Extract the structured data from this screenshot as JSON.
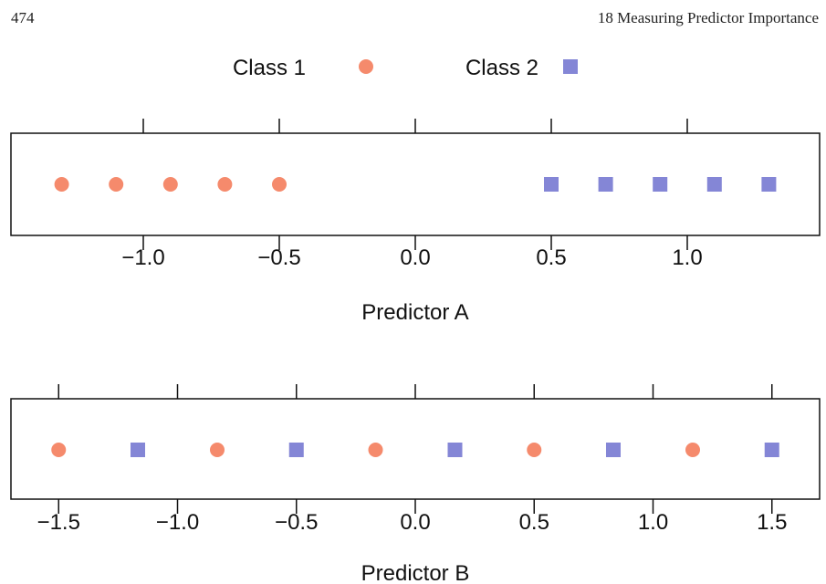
{
  "page": {
    "number": "474",
    "running_head": "18 Measuring Predictor Importance"
  },
  "colors": {
    "class1": "#f58a6c",
    "class2": "#8486d6"
  },
  "chart_data": {
    "legend": {
      "placement": "top-center",
      "entries": [
        {
          "label": "Class 1",
          "marker": "circle"
        },
        {
          "label": "Class 2",
          "marker": "square"
        }
      ]
    },
    "panels": [
      {
        "type": "scatter",
        "xlabel": "Predictor A",
        "xlim": [
          -1.49,
          1.48
        ],
        "ticks": [
          -1.0,
          -0.5,
          0.0,
          0.5,
          1.0
        ],
        "tick_labels": [
          "−1.0",
          "−0.5",
          "0.0",
          "0.5",
          "1.0"
        ],
        "series": [
          {
            "name": "Class 1",
            "x": [
              -1.3,
              -1.1,
              -0.9,
              -0.7,
              -0.5
            ]
          },
          {
            "name": "Class 2",
            "x": [
              0.5,
              0.7,
              0.9,
              1.1,
              1.3
            ]
          }
        ]
      },
      {
        "type": "scatter",
        "xlabel": "Predictor B",
        "xlim": [
          -1.7,
          1.7
        ],
        "ticks": [
          -1.5,
          -1.0,
          -0.5,
          0.0,
          0.5,
          1.0,
          1.5
        ],
        "tick_labels": [
          "−1.5",
          "−1.0",
          "−0.5",
          "0.0",
          "0.5",
          "1.0",
          "1.5"
        ],
        "series": [
          {
            "name": "Class 1",
            "x": [
              -1.5,
              -0.833,
              -0.167,
              0.5,
              1.167
            ]
          },
          {
            "name": "Class 2",
            "x": [
              -1.167,
              -0.5,
              0.167,
              0.833,
              1.5
            ]
          }
        ]
      }
    ]
  }
}
